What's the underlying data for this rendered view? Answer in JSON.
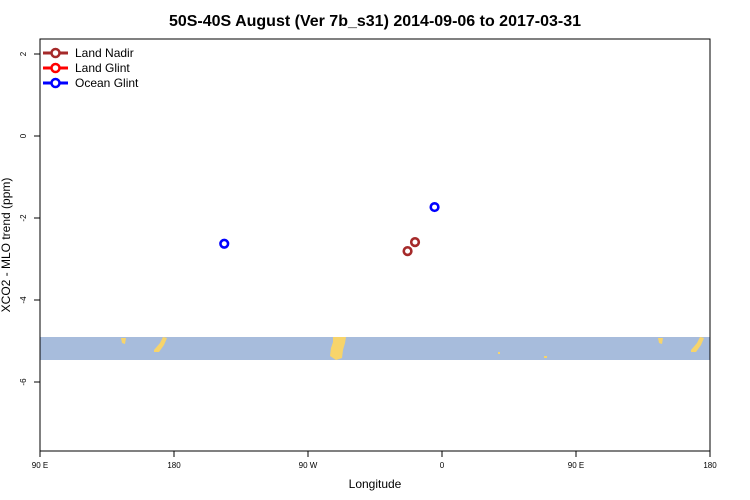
{
  "chart_data": {
    "type": "scatter",
    "title": "50S-40S August (Ver 7b_s31)   2014-09-06 to 2017-03-31",
    "xlabel": "Longitude",
    "ylabel": "XCO2 - MLO trend (ppm)",
    "xlim": [
      90,
      450
    ],
    "ylim": [
      -7.75,
      2.35
    ],
    "x_ticks": [
      {
        "value": 90,
        "label": "90 E"
      },
      {
        "value": 180,
        "label": "180"
      },
      {
        "value": 270,
        "label": "90 W"
      },
      {
        "value": 360,
        "label": "0"
      },
      {
        "value": 450,
        "label": "90 E"
      },
      {
        "value": 540,
        "label": "180"
      }
    ],
    "y_ticks": [
      {
        "value": 2,
        "label": "2"
      },
      {
        "value": 0,
        "label": "0"
      },
      {
        "value": -2,
        "label": "-2"
      },
      {
        "value": -4,
        "label": "-4"
      },
      {
        "value": -6,
        "label": "-6"
      }
    ],
    "x_axis_range_labels": [
      90,
      180
    ],
    "series": [
      {
        "name": "Land Nadir",
        "color": "#a52a2a",
        "points": [
          {
            "x": 287.5,
            "y": -2.85
          },
          {
            "x": 291.5,
            "y": -2.63
          }
        ]
      },
      {
        "name": "Land Glint",
        "color": "#ff0000",
        "points": []
      },
      {
        "name": "Ocean Glint",
        "color": "#0000ff",
        "points": [
          {
            "x": 189,
            "y": -2.67
          },
          {
            "x": 302,
            "y": -1.77
          }
        ]
      }
    ],
    "map_band": {
      "y_range": [
        -5.45,
        -4.9
      ],
      "ocean_color": "#a7bcdc",
      "land_color": "#f7d46b"
    },
    "legend_position": "top-left"
  }
}
